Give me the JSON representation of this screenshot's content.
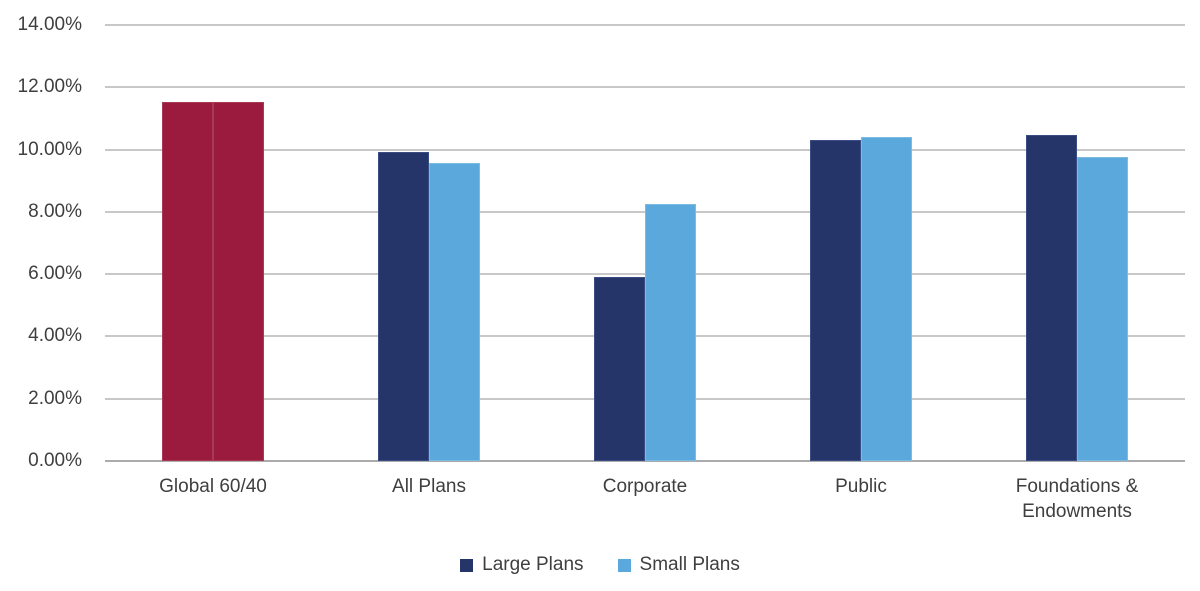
{
  "chart_data": {
    "type": "bar",
    "title": "",
    "xlabel": "",
    "ylabel": "",
    "categories": [
      "Global 60/40",
      "All Plans",
      "Corporate",
      "Public",
      "Foundations & Endowments"
    ],
    "series": [
      {
        "name": "Large Plans",
        "color": "#253569",
        "border_color": "#3a4e85",
        "values": [
          11.45,
          9.85,
          5.85,
          10.25,
          10.4
        ]
      },
      {
        "name": "Small Plans",
        "color": "#5ba9dc",
        "border_color": "#7cbce4",
        "values": [
          11.45,
          9.5,
          8.2,
          10.35,
          9.7
        ]
      }
    ],
    "benchmark_category": "Global 60/40",
    "benchmark_color": "#9a1b3d",
    "benchmark_border_color": "#a93a55",
    "y_ticks": [
      "0.00%",
      "2.00%",
      "4.00%",
      "6.00%",
      "8.00%",
      "10.00%",
      "12.00%",
      "14.00%"
    ],
    "ylim": [
      0,
      14
    ],
    "y_tick_step": 2,
    "grid": true,
    "legend_position": "bottom",
    "legend_items": [
      {
        "label": "Large Plans",
        "color": "#253569"
      },
      {
        "label": "Small Plans",
        "color": "#5ba9dc"
      }
    ]
  },
  "colors": {
    "background": "#ffffff",
    "gridline": "#c8c8c8",
    "axis_line": "#ababab",
    "text": "#3f3f3f"
  }
}
